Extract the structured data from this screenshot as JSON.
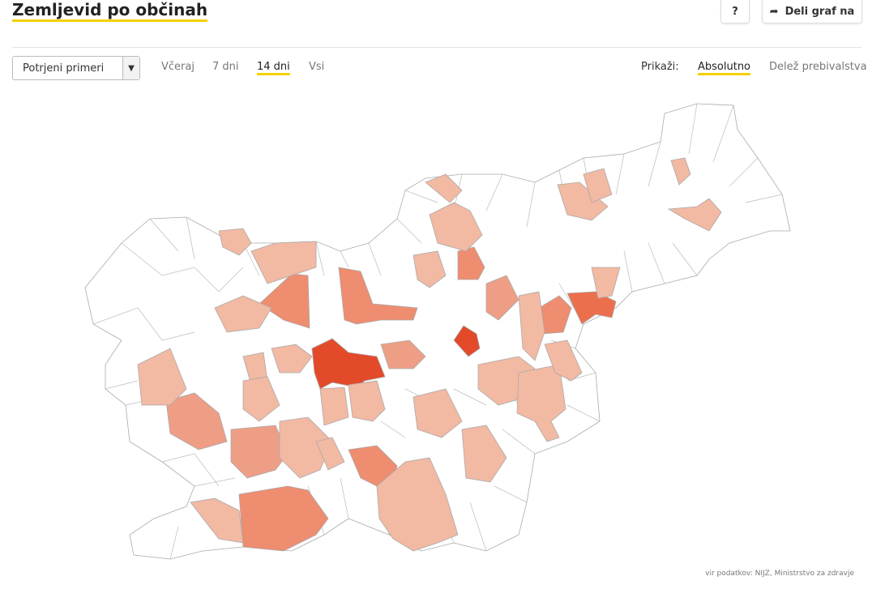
{
  "header": {
    "title": "Zemljevid po občinah",
    "help_button": "?",
    "share_button": "Deli graf na"
  },
  "controls": {
    "select": "Potrjeni primeri",
    "periods": [
      "Včeraj",
      "7 dni",
      "14 dni",
      "Vsi"
    ],
    "display_label": "Prikaži:",
    "display_options": [
      "Absolutno",
      "Delež prebivalstva"
    ]
  },
  "source": "vir podatkov: NIJZ, Ministrstvo za zdravje"
}
